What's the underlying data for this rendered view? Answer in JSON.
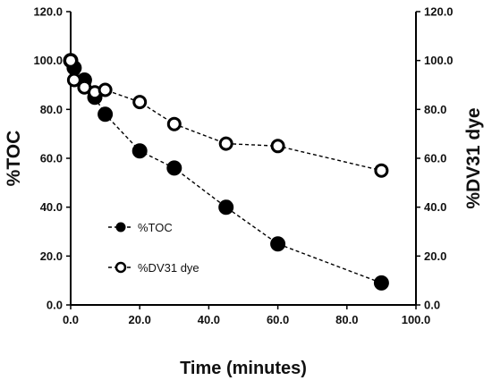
{
  "chart_data": {
    "type": "scatter",
    "xlabel": "Time (minutes)",
    "ylabel_left": "%TOC",
    "ylabel_right": "%DV31 dye",
    "xlim": [
      0,
      100
    ],
    "ylim": [
      0,
      120
    ],
    "x_ticks": [
      "0.0",
      "20.0",
      "40.0",
      "60.0",
      "80.0",
      "100.0"
    ],
    "y_ticks": [
      "0.0",
      "20.0",
      "40.0",
      "60.0",
      "80.0",
      "100.0",
      "120.0"
    ],
    "legend_position": "lower-left",
    "series": [
      {
        "name": "%TOC",
        "marker": "filled-circle",
        "line": "dashed",
        "color": "#000000",
        "x": [
          0,
          1,
          4,
          7,
          10,
          20,
          30,
          45,
          60,
          90
        ],
        "y": [
          100,
          97,
          92,
          85,
          78,
          63,
          56,
          40,
          25,
          9
        ]
      },
      {
        "name": "%DV31 dye",
        "marker": "open-circle",
        "line": "dashed",
        "color": "#000000",
        "x": [
          0,
          1,
          4,
          7,
          10,
          20,
          30,
          45,
          60,
          90
        ],
        "y": [
          100,
          92,
          89,
          87,
          88,
          83,
          74,
          66,
          65,
          55
        ]
      }
    ]
  }
}
